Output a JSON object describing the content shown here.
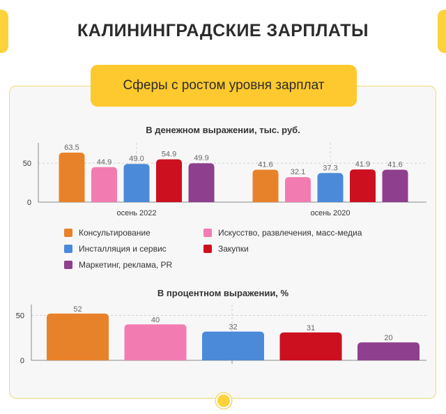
{
  "header": {
    "title": "КАЛИНИНГРАДСКИЕ ЗАРПЛАТЫ"
  },
  "subtitle": "Сферы с ростом уровня зарплат",
  "colors": {
    "consulting": "#e8822a",
    "arts": "#f27bb2",
    "install": "#4a8ad8",
    "purchasing": "#cc1020",
    "marketing": "#8e3f8e",
    "accent": "#fdc92e"
  },
  "chart_data": [
    {
      "type": "bar",
      "title": "В денежном выражении, тыс. руб.",
      "categories": [
        "осень 2022",
        "осень 2020"
      ],
      "series": [
        {
          "name": "Консультирование",
          "color": "#e8822a",
          "values": [
            63.5,
            41.6
          ]
        },
        {
          "name": "Искусство, развлечения, масс-медиа",
          "color": "#f27bb2",
          "values": [
            44.9,
            32.1
          ]
        },
        {
          "name": "Инсталляция и сервис",
          "color": "#4a8ad8",
          "values": [
            49.0,
            37.3
          ]
        },
        {
          "name": "Закупки",
          "color": "#cc1020",
          "values": [
            54.9,
            41.9
          ]
        },
        {
          "name": "Маркетинг, реклама, PR",
          "color": "#8e3f8e",
          "values": [
            49.9,
            41.6
          ]
        }
      ],
      "yticks": [
        0,
        50
      ],
      "ylim": [
        0,
        76
      ],
      "legend": "bottom",
      "grid": true
    },
    {
      "type": "bar",
      "title": "В процентном выражении, %",
      "categories": [
        "Консультирование",
        "Искусство, развлечения, масс-медиа",
        "Инсталляция и сервис",
        "Закупки",
        "Маркетинг, реклама, PR"
      ],
      "values": [
        52,
        40,
        32,
        31,
        20
      ],
      "colors": [
        "#e8822a",
        "#f27bb2",
        "#4a8ad8",
        "#cc1020",
        "#8e3f8e"
      ],
      "yticks": [
        0,
        50
      ],
      "ylim": [
        0,
        62
      ],
      "grid": true
    }
  ]
}
